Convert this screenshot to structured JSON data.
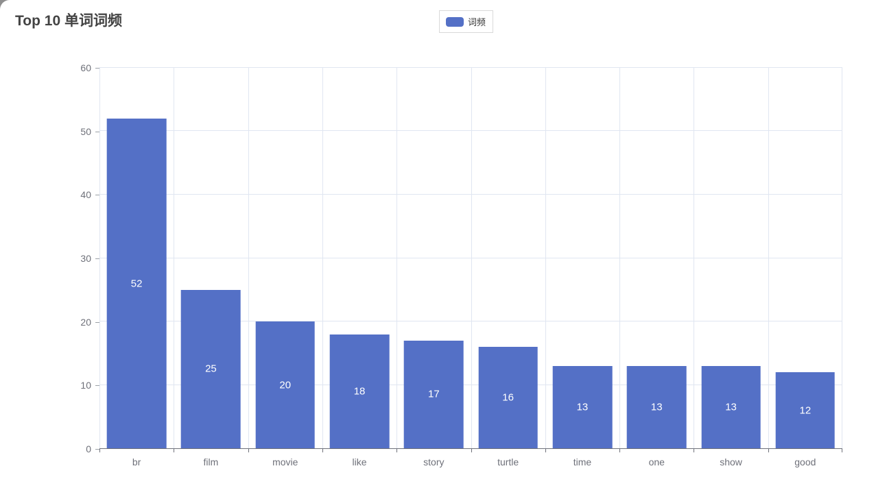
{
  "page": {
    "title": "Top 10 单词词频"
  },
  "legend": {
    "items": [
      {
        "label": "词频",
        "color": "#5470c6"
      }
    ]
  },
  "chart_data": {
    "type": "bar",
    "title": "Top 10 单词词频",
    "categories": [
      "br",
      "film",
      "movie",
      "like",
      "story",
      "turtle",
      "time",
      "one",
      "show",
      "good"
    ],
    "series": [
      {
        "name": "词频",
        "values": [
          52,
          25,
          20,
          18,
          17,
          16,
          13,
          13,
          13,
          12
        ]
      }
    ],
    "xlabel": "",
    "ylabel": "",
    "ylim": [
      0,
      60
    ],
    "ytick_step": 10,
    "grid": "both",
    "legend_position": "top-center",
    "value_labels": "inside-center",
    "colors": {
      "bar": "#5470c6",
      "grid_line": "#e0e6f1",
      "axis_line": "#6e7079",
      "tick_label": "#6e7079",
      "value_label": "#ffffff"
    }
  }
}
